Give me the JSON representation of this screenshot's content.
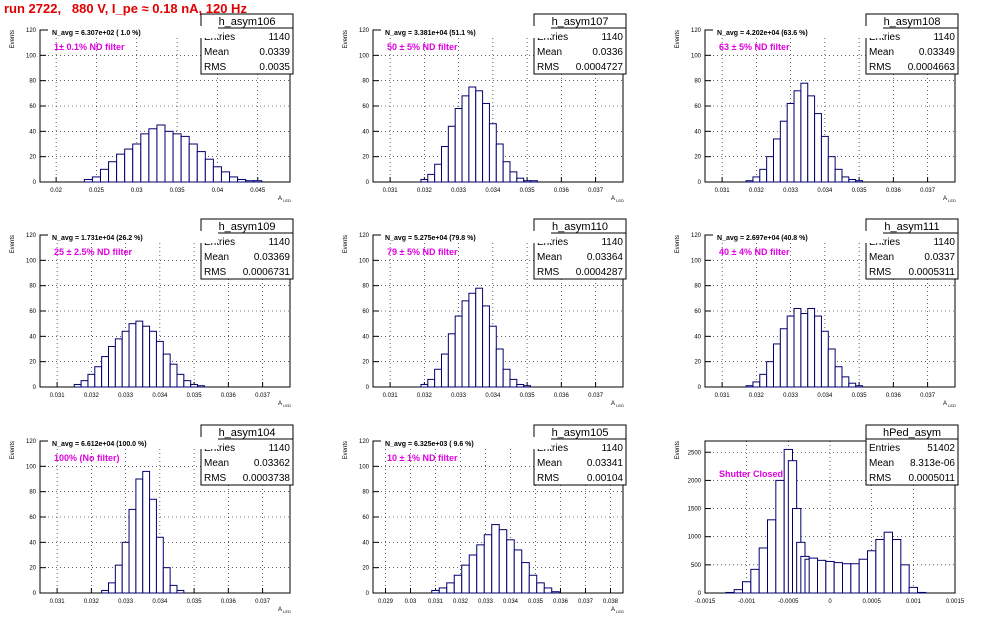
{
  "run_title": "run 2722,   880 V, I_pe ≈ 0.18 nA, 120 Hz",
  "colors": {
    "hist": "#00006e",
    "annotation": "#e000e0",
    "title": "#e00000",
    "grid": "#000000",
    "frame": "#000000"
  },
  "chart_data": [
    {
      "type": "bar",
      "name": "h_asym106",
      "stats": {
        "entries_label": "Entries",
        "entries": "1140",
        "mean_label": "Mean",
        "mean": "0.0339",
        "rms_label": "RMS",
        "rms": "0.0035"
      },
      "navg": "N_avg = 6.307e+02 ( 1.0 %)",
      "filter": "1± 0.1% ND filter",
      "ylabel": "Events",
      "xlabel": "A",
      "xlabel_sub": "LED",
      "grid": true,
      "xlim": [
        0.018,
        0.049
      ],
      "ylim": [
        0,
        120
      ],
      "xticks": [
        0.02,
        0.025,
        0.03,
        0.035,
        0.04,
        0.045
      ],
      "xtick_labels": [
        "0.02",
        "0.025",
        "0.03",
        "0.035",
        "0.04",
        "0.045"
      ],
      "yticks": [
        0,
        20,
        40,
        60,
        80,
        100,
        120
      ],
      "x": [
        0.024,
        0.025,
        0.026,
        0.027,
        0.028,
        0.029,
        0.03,
        0.031,
        0.032,
        0.033,
        0.034,
        0.035,
        0.036,
        0.037,
        0.038,
        0.039,
        0.04,
        0.041,
        0.042,
        0.043,
        0.044,
        0.045
      ],
      "values": [
        2,
        4,
        10,
        16,
        22,
        26,
        30,
        38,
        42,
        45,
        40,
        38,
        36,
        30,
        24,
        18,
        12,
        8,
        4,
        2,
        1,
        1
      ]
    },
    {
      "type": "bar",
      "name": "h_asym107",
      "stats": {
        "entries_label": "Entries",
        "entries": "1140",
        "mean_label": "Mean",
        "mean": "0.0336",
        "rms_label": "RMS",
        "rms": "0.0004727"
      },
      "navg": "N_avg = 3.381e+04 (51.1 %)",
      "filter": "50 ± 5% ND filter",
      "ylabel": "Events",
      "xlabel": "A",
      "xlabel_sub": "LED",
      "grid": true,
      "xlim": [
        0.0305,
        0.0378
      ],
      "ylim": [
        0,
        120
      ],
      "xticks": [
        0.031,
        0.032,
        0.033,
        0.034,
        0.035,
        0.036,
        0.037
      ],
      "xtick_labels": [
        "0.031",
        "0.032",
        "0.033",
        "0.034",
        "0.035",
        "0.036",
        "0.037"
      ],
      "yticks": [
        0,
        20,
        40,
        60,
        80,
        100,
        120
      ],
      "x": [
        0.032,
        0.0322,
        0.0324,
        0.0326,
        0.0328,
        0.033,
        0.0332,
        0.0334,
        0.0336,
        0.0338,
        0.034,
        0.0342,
        0.0344,
        0.0346,
        0.0348,
        0.035,
        0.0352
      ],
      "values": [
        2,
        6,
        14,
        28,
        44,
        58,
        68,
        75,
        72,
        62,
        46,
        30,
        16,
        8,
        3,
        1,
        1
      ]
    },
    {
      "type": "bar",
      "name": "h_asym108",
      "stats": {
        "entries_label": "Entries",
        "entries": "1140",
        "mean_label": "Mean",
        "mean": "0.03349",
        "rms_label": "RMS",
        "rms": "0.0004663"
      },
      "navg": "N_avg = 4.202e+04 (63.6 %)",
      "filter": "63 ± 5% ND filter",
      "ylabel": "Events",
      "xlabel": "A",
      "xlabel_sub": "LED",
      "grid": true,
      "xlim": [
        0.0305,
        0.0378
      ],
      "ylim": [
        0,
        120
      ],
      "xticks": [
        0.031,
        0.032,
        0.033,
        0.034,
        0.035,
        0.036,
        0.037
      ],
      "xtick_labels": [
        "0.031",
        "0.032",
        "0.033",
        "0.034",
        "0.035",
        "0.036",
        "0.037"
      ],
      "yticks": [
        0,
        20,
        40,
        60,
        80,
        100,
        120
      ],
      "x": [
        0.0318,
        0.032,
        0.0322,
        0.0324,
        0.0326,
        0.0328,
        0.033,
        0.0332,
        0.0334,
        0.0336,
        0.0338,
        0.034,
        0.0342,
        0.0344,
        0.0346,
        0.0348,
        0.035
      ],
      "values": [
        1,
        4,
        10,
        20,
        34,
        48,
        62,
        72,
        78,
        68,
        54,
        36,
        20,
        10,
        4,
        2,
        1
      ]
    },
    {
      "type": "bar",
      "name": "h_asym109",
      "stats": {
        "entries_label": "Entries",
        "entries": "1140",
        "mean_label": "Mean",
        "mean": "0.03369",
        "rms_label": "RMS",
        "rms": "0.0006731"
      },
      "navg": "N_avg = 1.731e+04 (26.2 %)",
      "filter": "25 ± 2.5% ND filter",
      "ylabel": "Events",
      "xlabel": "A",
      "xlabel_sub": "LED",
      "grid": true,
      "xlim": [
        0.0305,
        0.0378
      ],
      "ylim": [
        0,
        120
      ],
      "xticks": [
        0.031,
        0.032,
        0.033,
        0.034,
        0.035,
        0.036,
        0.037
      ],
      "xtick_labels": [
        "0.031",
        "0.032",
        "0.033",
        "0.034",
        "0.035",
        "0.036",
        "0.037"
      ],
      "yticks": [
        0,
        20,
        40,
        60,
        80,
        100,
        120
      ],
      "x": [
        0.0316,
        0.0318,
        0.032,
        0.0322,
        0.0324,
        0.0326,
        0.0328,
        0.033,
        0.0332,
        0.0334,
        0.0336,
        0.0338,
        0.034,
        0.0342,
        0.0344,
        0.0346,
        0.0348,
        0.035,
        0.0352
      ],
      "values": [
        2,
        5,
        10,
        16,
        24,
        32,
        38,
        44,
        50,
        52,
        48,
        44,
        36,
        26,
        18,
        10,
        5,
        2,
        1
      ]
    },
    {
      "type": "bar",
      "name": "h_asym110",
      "stats": {
        "entries_label": "Entries",
        "entries": "1140",
        "mean_label": "Mean",
        "mean": "0.03364",
        "rms_label": "RMS",
        "rms": "0.0004287"
      },
      "navg": "N_avg = 5.275e+04 (79.8 %)",
      "filter": "79 ± 5% ND filter",
      "ylabel": "Events",
      "xlabel": "A",
      "xlabel_sub": "LED",
      "grid": true,
      "xlim": [
        0.0305,
        0.0378
      ],
      "ylim": [
        0,
        120
      ],
      "xticks": [
        0.031,
        0.032,
        0.033,
        0.034,
        0.035,
        0.036,
        0.037
      ],
      "xtick_labels": [
        "0.031",
        "0.032",
        "0.033",
        "0.034",
        "0.035",
        "0.036",
        "0.037"
      ],
      "yticks": [
        0,
        20,
        40,
        60,
        80,
        100,
        120
      ],
      "x": [
        0.032,
        0.0322,
        0.0324,
        0.0326,
        0.0328,
        0.033,
        0.0332,
        0.0334,
        0.0336,
        0.0338,
        0.034,
        0.0342,
        0.0344,
        0.0346,
        0.0348,
        0.035
      ],
      "values": [
        2,
        6,
        14,
        26,
        42,
        56,
        68,
        74,
        78,
        64,
        48,
        30,
        14,
        6,
        2,
        1
      ]
    },
    {
      "type": "bar",
      "name": "h_asym111",
      "stats": {
        "entries_label": "Entries",
        "entries": "1140",
        "mean_label": "Mean",
        "mean": "0.0337",
        "rms_label": "RMS",
        "rms": "0.0005311"
      },
      "navg": "N_avg = 2.697e+04 (40.8 %)",
      "filter": "40 ± 4% ND filter",
      "ylabel": "Events",
      "xlabel": "A",
      "xlabel_sub": "LED",
      "grid": true,
      "xlim": [
        0.0305,
        0.0378
      ],
      "ylim": [
        0,
        120
      ],
      "xticks": [
        0.031,
        0.032,
        0.033,
        0.034,
        0.035,
        0.036,
        0.037
      ],
      "xtick_labels": [
        "0.031",
        "0.032",
        "0.033",
        "0.034",
        "0.035",
        "0.036",
        "0.037"
      ],
      "yticks": [
        0,
        20,
        40,
        60,
        80,
        100,
        120
      ],
      "x": [
        0.0318,
        0.032,
        0.0322,
        0.0324,
        0.0326,
        0.0328,
        0.033,
        0.0332,
        0.0334,
        0.0336,
        0.0338,
        0.034,
        0.0342,
        0.0344,
        0.0346,
        0.0348,
        0.035
      ],
      "values": [
        1,
        4,
        10,
        20,
        34,
        46,
        56,
        62,
        58,
        62,
        56,
        44,
        30,
        16,
        8,
        3,
        1
      ]
    },
    {
      "type": "bar",
      "name": "h_asym104",
      "stats": {
        "entries_label": "Entries",
        "entries": "1140",
        "mean_label": "Mean",
        "mean": "0.03362",
        "rms_label": "RMS",
        "rms": "0.0003738"
      },
      "navg": "N_avg = 6.612e+04 (100.0 %)",
      "filter": "100% (No filter)",
      "ylabel": "Events",
      "xlabel": "A",
      "xlabel_sub": "LED",
      "grid": true,
      "xlim": [
        0.0305,
        0.0378
      ],
      "ylim": [
        0,
        120
      ],
      "xticks": [
        0.031,
        0.032,
        0.033,
        0.034,
        0.035,
        0.036,
        0.037
      ],
      "xtick_labels": [
        "0.031",
        "0.032",
        "0.033",
        "0.034",
        "0.035",
        "0.036",
        "0.037"
      ],
      "yticks": [
        0,
        20,
        40,
        60,
        80,
        100,
        120
      ],
      "x": [
        0.0324,
        0.0326,
        0.0328,
        0.033,
        0.0332,
        0.0334,
        0.0336,
        0.0338,
        0.034,
        0.0342,
        0.0344,
        0.0346
      ],
      "values": [
        2,
        8,
        22,
        40,
        66,
        90,
        96,
        74,
        44,
        20,
        6,
        2
      ]
    },
    {
      "type": "bar",
      "name": "h_asym105",
      "stats": {
        "entries_label": "Entries",
        "entries": "1140",
        "mean_label": "Mean",
        "mean": "0.03341",
        "rms_label": "RMS",
        "rms": "0.00104"
      },
      "navg": "N_avg = 6.325e+03 ( 9.6 %)",
      "filter": "10 ± 1% ND filter",
      "ylabel": "Events",
      "xlabel": "A",
      "xlabel_sub": "LED",
      "grid": true,
      "xlim": [
        0.0285,
        0.0385
      ],
      "ylim": [
        0,
        120
      ],
      "xticks": [
        0.029,
        0.03,
        0.031,
        0.032,
        0.033,
        0.034,
        0.035,
        0.036,
        0.037,
        0.038
      ],
      "xtick_labels": [
        "0.029",
        "0.03",
        "0.031",
        "0.032",
        "0.033",
        "0.034",
        "0.035",
        "0.036",
        "0.037",
        "0.038"
      ],
      "yticks": [
        0,
        20,
        40,
        60,
        80,
        100,
        120
      ],
      "x": [
        0.031,
        0.0313,
        0.0316,
        0.0319,
        0.0322,
        0.0325,
        0.0328,
        0.0331,
        0.0334,
        0.0337,
        0.034,
        0.0343,
        0.0346,
        0.0349,
        0.0352,
        0.0355,
        0.0358
      ],
      "values": [
        2,
        4,
        8,
        14,
        22,
        30,
        38,
        46,
        54,
        50,
        42,
        34,
        24,
        14,
        8,
        4,
        1
      ]
    },
    {
      "type": "bar",
      "name": "hPed_asym",
      "stats": {
        "entries_label": "Entries",
        "entries": "51402",
        "mean_label": "Mean",
        "mean": "8.313e-06",
        "rms_label": "RMS",
        "rms": "0.0005011"
      },
      "filter": "Shutter Closed",
      "ylabel": "Events",
      "xlabel": "",
      "grid": true,
      "xlim": [
        -0.0015,
        0.0015
      ],
      "ylim": [
        0,
        2700
      ],
      "xticks": [
        -0.0015,
        -0.001,
        -0.0005,
        0,
        0.0005,
        0.001,
        0.0015
      ],
      "xtick_labels": [
        "-0.0015",
        "-0.001",
        "-0.0005",
        "0",
        "0.0005",
        "0.001",
        "0.0015"
      ],
      "yticks": [
        0,
        500,
        1000,
        1500,
        2000,
        2500
      ],
      "x": [
        -0.0012,
        -0.0011,
        -0.001,
        -0.0009,
        -0.0008,
        -0.0007,
        -0.0006,
        -0.0005,
        -0.00045,
        -0.0004,
        -0.00035,
        -0.0003,
        -0.00025,
        -0.0002,
        -0.0001,
        0.0,
        0.0001,
        0.0002,
        0.0003,
        0.0004,
        0.0005,
        0.0006,
        0.0007,
        0.0008,
        0.0009,
        0.001,
        0.0011
      ],
      "values": [
        10,
        60,
        200,
        420,
        800,
        1300,
        2000,
        2550,
        2350,
        1500,
        900,
        650,
        600,
        620,
        580,
        560,
        540,
        520,
        520,
        600,
        750,
        950,
        1080,
        950,
        500,
        100,
        10
      ]
    }
  ]
}
